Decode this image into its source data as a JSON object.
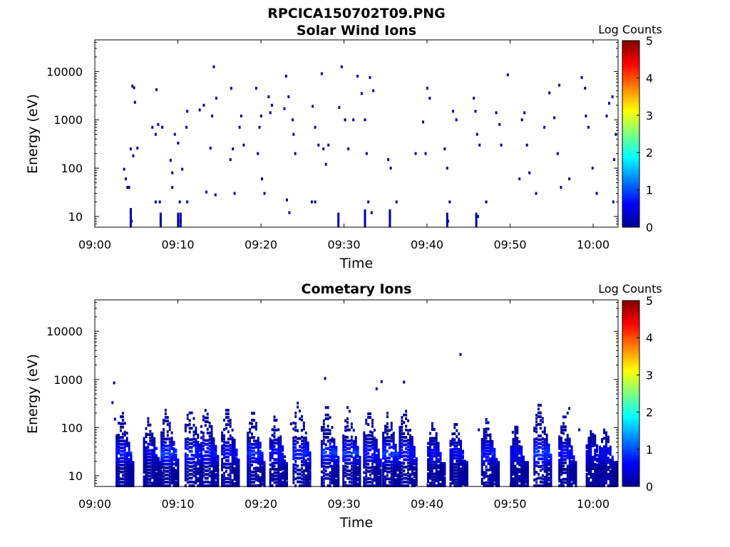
{
  "figure_title": "RPCICA150702T09.PNG",
  "colorbar": {
    "label": "Log Counts",
    "ticks": [
      "5",
      "4",
      "3",
      "2",
      "1",
      "0"
    ],
    "colormap": "jet",
    "colors": [
      "#00008f",
      "#0000ff",
      "#00ffff",
      "#ffff00",
      "#ff0000",
      "#800000"
    ]
  },
  "chart_data": [
    {
      "type": "heatmap",
      "title": "Solar Wind Ions",
      "xlabel": "Time",
      "ylabel": "Energy (eV)",
      "x_ticks": [
        "09:00",
        "09:10",
        "09:20",
        "09:30",
        "09:40",
        "09:50",
        "10:00"
      ],
      "x_range_minutes": [
        0,
        63
      ],
      "y_scale": "log",
      "y_ticks": [
        "10",
        "100",
        "1000",
        "10000"
      ],
      "y_range": [
        6,
        45000
      ],
      "z_range": [
        0,
        5
      ],
      "description": "sparse scattered single-count pixels (Log Counts ~0) across 09:03–10:03",
      "points": [
        {
          "t": 3.4,
          "e": 95
        },
        {
          "t": 3.6,
          "e": 60
        },
        {
          "t": 3.8,
          "e": 40
        },
        {
          "t": 4.0,
          "e": 40
        },
        {
          "t": 4.2,
          "e": 250
        },
        {
          "t": 4.4,
          "e": 5000
        },
        {
          "t": 4.6,
          "e": 4600
        },
        {
          "t": 4.7,
          "e": 2300
        },
        {
          "t": 4.5,
          "e": 180
        },
        {
          "t": 4.3,
          "e": 8
        },
        {
          "t": 4.2,
          "e": 12
        },
        {
          "t": 5.0,
          "e": 260
        },
        {
          "t": 6.8,
          "e": 700
        },
        {
          "t": 7.2,
          "e": 500
        },
        {
          "t": 7.3,
          "e": 4200
        },
        {
          "t": 7.5,
          "e": 800
        },
        {
          "t": 7.7,
          "e": 20
        },
        {
          "t": 7.8,
          "e": 8
        },
        {
          "t": 8.0,
          "e": 700
        },
        {
          "t": 7.2,
          "e": 20
        },
        {
          "t": 9.0,
          "e": 145
        },
        {
          "t": 9.2,
          "e": 80
        },
        {
          "t": 9.2,
          "e": 40
        },
        {
          "t": 9.5,
          "e": 500
        },
        {
          "t": 9.9,
          "e": 330
        },
        {
          "t": 10.1,
          "e": 20
        },
        {
          "t": 10.2,
          "e": 8
        },
        {
          "t": 10.4,
          "e": 95
        },
        {
          "t": 10.9,
          "e": 700
        },
        {
          "t": 11.0,
          "e": 1500
        },
        {
          "t": 11.0,
          "e": 20
        },
        {
          "t": 12.5,
          "e": 1600
        },
        {
          "t": 13.0,
          "e": 2000
        },
        {
          "t": 13.3,
          "e": 32
        },
        {
          "t": 13.8,
          "e": 260
        },
        {
          "t": 14.0,
          "e": 1200
        },
        {
          "t": 14.2,
          "e": 12500
        },
        {
          "t": 14.5,
          "e": 2800
        },
        {
          "t": 14.4,
          "e": 28
        },
        {
          "t": 16.2,
          "e": 150
        },
        {
          "t": 16.5,
          "e": 250
        },
        {
          "t": 16.3,
          "e": 4500
        },
        {
          "t": 16.7,
          "e": 30
        },
        {
          "t": 17.3,
          "e": 700
        },
        {
          "t": 17.5,
          "e": 1200
        },
        {
          "t": 17.8,
          "e": 300
        },
        {
          "t": 19.3,
          "e": 4500
        },
        {
          "t": 19.5,
          "e": 200
        },
        {
          "t": 19.7,
          "e": 700
        },
        {
          "t": 19.9,
          "e": 1200
        },
        {
          "t": 20.0,
          "e": 60
        },
        {
          "t": 20.3,
          "e": 30
        },
        {
          "t": 20.8,
          "e": 3000
        },
        {
          "t": 21.0,
          "e": 1400
        },
        {
          "t": 21.2,
          "e": 2000
        },
        {
          "t": 22.7,
          "e": 1700
        },
        {
          "t": 22.9,
          "e": 8000
        },
        {
          "t": 23.2,
          "e": 3000
        },
        {
          "t": 23.0,
          "e": 22
        },
        {
          "t": 23.3,
          "e": 12
        },
        {
          "t": 23.7,
          "e": 1000
        },
        {
          "t": 23.8,
          "e": 500
        },
        {
          "t": 24.0,
          "e": 200
        },
        {
          "t": 26.1,
          "e": 1900
        },
        {
          "t": 26.4,
          "e": 700
        },
        {
          "t": 26.8,
          "e": 300
        },
        {
          "t": 27.2,
          "e": 9000
        },
        {
          "t": 27.4,
          "e": 250
        },
        {
          "t": 27.7,
          "e": 120
        },
        {
          "t": 28.0,
          "e": 300
        },
        {
          "t": 26.0,
          "e": 20
        },
        {
          "t": 26.4,
          "e": 20
        },
        {
          "t": 29.6,
          "e": 12500
        },
        {
          "t": 29.3,
          "e": 1800
        },
        {
          "t": 30.0,
          "e": 1000
        },
        {
          "t": 30.4,
          "e": 250
        },
        {
          "t": 31.0,
          "e": 1000
        },
        {
          "t": 31.5,
          "e": 8000
        },
        {
          "t": 32.0,
          "e": 3500
        },
        {
          "t": 32.4,
          "e": 1000
        },
        {
          "t": 32.6,
          "e": 200
        },
        {
          "t": 33.0,
          "e": 7500
        },
        {
          "t": 33.4,
          "e": 4000
        },
        {
          "t": 32.8,
          "e": 20
        },
        {
          "t": 33.2,
          "e": 12
        },
        {
          "t": 35.2,
          "e": 150
        },
        {
          "t": 35.5,
          "e": 100
        },
        {
          "t": 35.4,
          "e": 10
        },
        {
          "t": 36.2,
          "e": 20
        },
        {
          "t": 38.5,
          "e": 200
        },
        {
          "t": 39.4,
          "e": 900
        },
        {
          "t": 39.7,
          "e": 200
        },
        {
          "t": 39.9,
          "e": 4500
        },
        {
          "t": 40.2,
          "e": 2800
        },
        {
          "t": 42.0,
          "e": 250
        },
        {
          "t": 42.3,
          "e": 100
        },
        {
          "t": 42.6,
          "e": 20
        },
        {
          "t": 42.4,
          "e": 8
        },
        {
          "t": 43.0,
          "e": 1500
        },
        {
          "t": 43.4,
          "e": 1000
        },
        {
          "t": 45.5,
          "e": 2800
        },
        {
          "t": 45.7,
          "e": 1500
        },
        {
          "t": 45.9,
          "e": 500
        },
        {
          "t": 46.2,
          "e": 300
        },
        {
          "t": 46.0,
          "e": 10
        },
        {
          "t": 47.0,
          "e": 20
        },
        {
          "t": 48.2,
          "e": 1400
        },
        {
          "t": 48.6,
          "e": 800
        },
        {
          "t": 48.8,
          "e": 300
        },
        {
          "t": 49.6,
          "e": 8500
        },
        {
          "t": 51.0,
          "e": 60
        },
        {
          "t": 51.3,
          "e": 1000
        },
        {
          "t": 51.6,
          "e": 1400
        },
        {
          "t": 51.9,
          "e": 300
        },
        {
          "t": 52.2,
          "e": 80
        },
        {
          "t": 53.0,
          "e": 30
        },
        {
          "t": 54.0,
          "e": 700
        },
        {
          "t": 54.6,
          "e": 3600
        },
        {
          "t": 55.2,
          "e": 1100
        },
        {
          "t": 55.6,
          "e": 200
        },
        {
          "t": 55.8,
          "e": 5200
        },
        {
          "t": 56.0,
          "e": 40
        },
        {
          "t": 57.0,
          "e": 60
        },
        {
          "t": 58.5,
          "e": 7500
        },
        {
          "t": 58.9,
          "e": 4500
        },
        {
          "t": 59.0,
          "e": 1200
        },
        {
          "t": 59.3,
          "e": 700
        },
        {
          "t": 59.8,
          "e": 100
        },
        {
          "t": 60.3,
          "e": 30
        },
        {
          "t": 61.5,
          "e": 1200
        },
        {
          "t": 61.8,
          "e": 2200
        },
        {
          "t": 62.2,
          "e": 3000
        },
        {
          "t": 62.4,
          "e": 150
        },
        {
          "t": 62.3,
          "e": 20
        },
        {
          "t": 62.6,
          "e": 500
        }
      ],
      "strips": [
        {
          "t": 4.2,
          "e0": 6,
          "e1": 15
        },
        {
          "t": 7.8,
          "e0": 6,
          "e1": 12
        },
        {
          "t": 9.9,
          "e0": 6,
          "e1": 12
        },
        {
          "t": 10.2,
          "e0": 6,
          "e1": 12
        },
        {
          "t": 29.2,
          "e0": 6,
          "e1": 12
        },
        {
          "t": 32.4,
          "e0": 6,
          "e1": 14
        },
        {
          "t": 35.4,
          "e0": 6,
          "e1": 14
        },
        {
          "t": 42.3,
          "e0": 6,
          "e1": 12
        },
        {
          "t": 45.8,
          "e0": 6,
          "e1": 12
        }
      ]
    },
    {
      "type": "heatmap",
      "title": "Cometary Ions",
      "xlabel": "Time",
      "ylabel": "Energy (eV)",
      "x_ticks": [
        "09:00",
        "09:10",
        "09:20",
        "09:30",
        "09:40",
        "09:50",
        "10:00"
      ],
      "x_range_minutes": [
        0,
        63
      ],
      "y_scale": "log",
      "y_ticks": [
        "10",
        "100",
        "1000",
        "10000"
      ],
      "y_range": [
        6,
        45000
      ],
      "z_range": [
        0,
        5
      ],
      "description": "repeating low-energy bursts (about 6–500 eV) with peak Log Counts ~1 near 20–40 eV",
      "bursts": [
        {
          "t": 3.5,
          "top": 300,
          "peak": 0.9
        },
        {
          "t": 6.8,
          "top": 230,
          "peak": 0.6
        },
        {
          "t": 8.9,
          "top": 350,
          "peak": 1.2
        },
        {
          "t": 11.8,
          "top": 450,
          "peak": 1.0
        },
        {
          "t": 13.7,
          "top": 420,
          "peak": 0.9
        },
        {
          "t": 16.2,
          "top": 350,
          "peak": 0.7
        },
        {
          "t": 19.3,
          "top": 300,
          "peak": 1.0
        },
        {
          "t": 22.0,
          "top": 250,
          "peak": 0.8
        },
        {
          "t": 24.8,
          "top": 500,
          "peak": 0.9
        },
        {
          "t": 28.2,
          "top": 400,
          "peak": 1.1
        },
        {
          "t": 30.8,
          "top": 400,
          "peak": 1.0
        },
        {
          "t": 33.3,
          "top": 350,
          "peak": 0.8
        },
        {
          "t": 35.6,
          "top": 300,
          "peak": 1.1
        },
        {
          "t": 37.6,
          "top": 400,
          "peak": 0.9
        },
        {
          "t": 41.0,
          "top": 180,
          "peak": 0.7
        },
        {
          "t": 43.7,
          "top": 200,
          "peak": 0.7
        },
        {
          "t": 47.5,
          "top": 220,
          "peak": 1.0
        },
        {
          "t": 51.0,
          "top": 150,
          "peak": 0.7
        },
        {
          "t": 53.8,
          "top": 450,
          "peak": 1.2
        },
        {
          "t": 56.8,
          "top": 250,
          "peak": 0.8
        },
        {
          "t": 60.1,
          "top": 160,
          "peak": 0.6
        },
        {
          "t": 61.7,
          "top": 150,
          "peak": 0.7
        }
      ],
      "points": [
        {
          "t": 2.0,
          "e": 330
        },
        {
          "t": 2.2,
          "e": 850
        },
        {
          "t": 2.3,
          "e": 150
        },
        {
          "t": 27.6,
          "e": 1050
        },
        {
          "t": 33.8,
          "e": 640
        },
        {
          "t": 34.4,
          "e": 900
        },
        {
          "t": 37.1,
          "e": 880
        },
        {
          "t": 43.9,
          "e": 3300
        },
        {
          "t": 46.1,
          "e": 90
        },
        {
          "t": 57.0,
          "e": 250
        },
        {
          "t": 56.8,
          "e": 200
        },
        {
          "t": 23.5,
          "e": 120
        },
        {
          "t": 50.2,
          "e": 80
        },
        {
          "t": 58.2,
          "e": 90
        }
      ]
    }
  ]
}
